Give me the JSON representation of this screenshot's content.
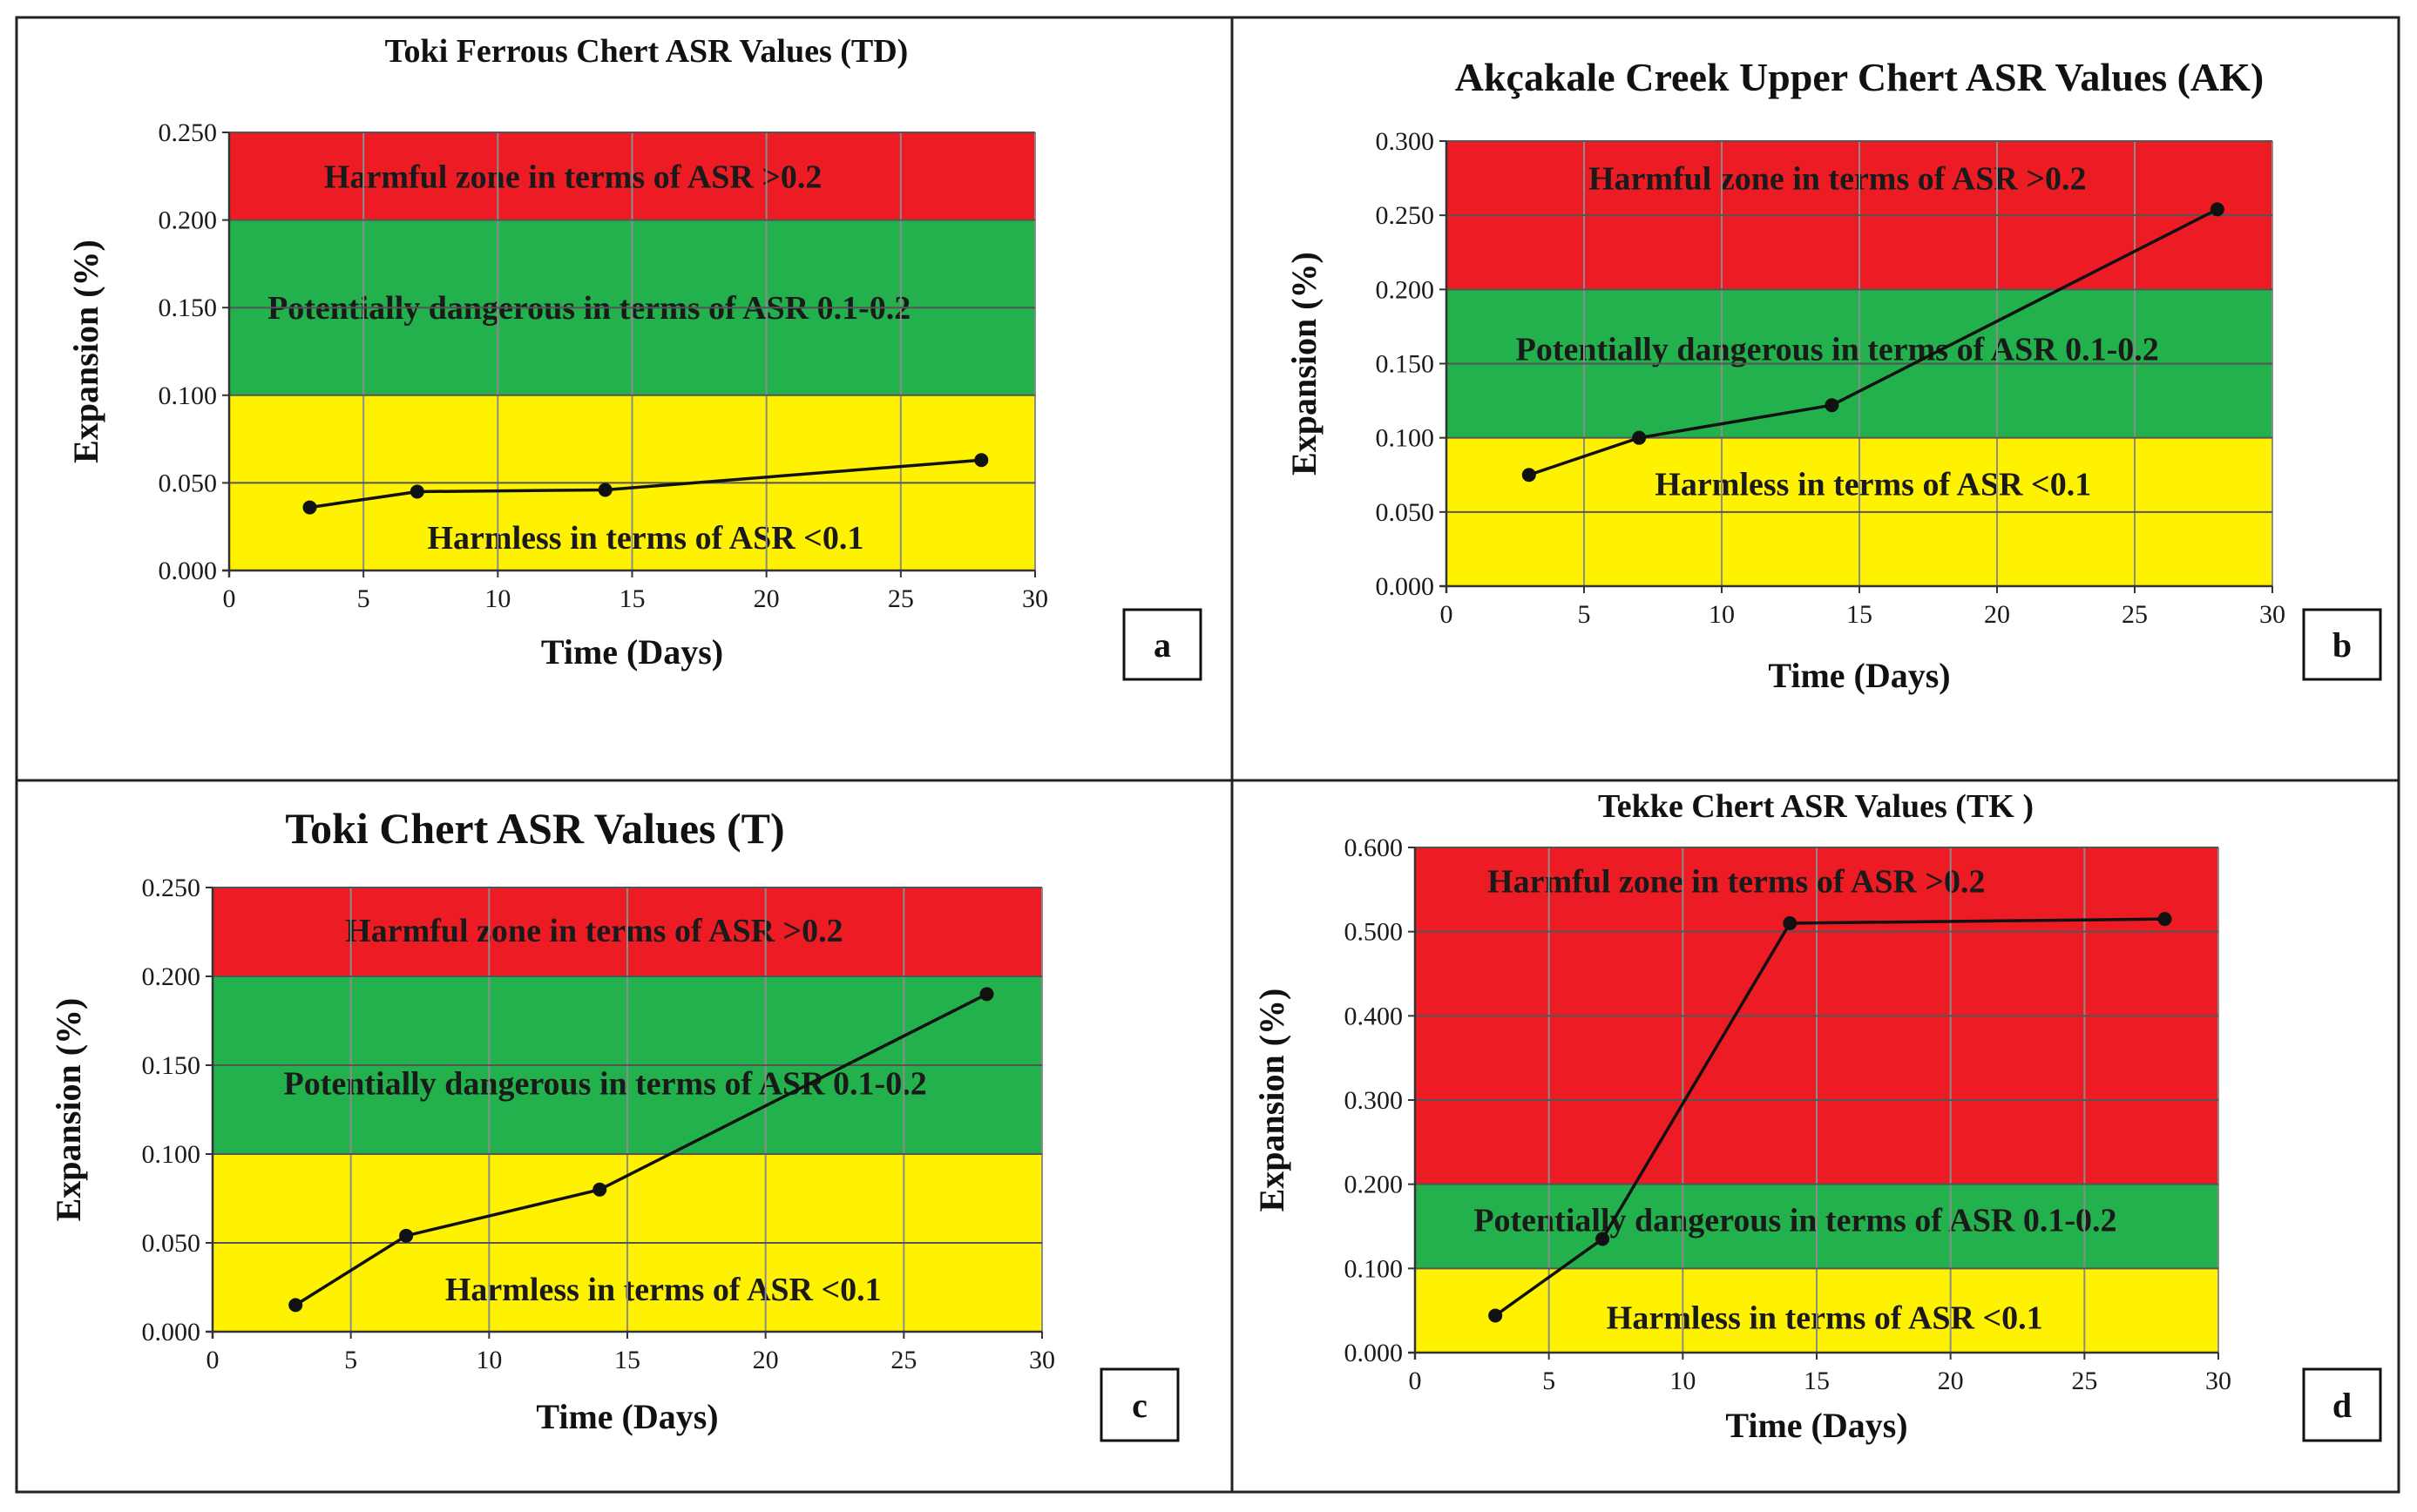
{
  "figure": {
    "zone_colors": {
      "harmful": "#ED1C24",
      "potential": "#22B14C",
      "harmless": "#FFF200"
    },
    "line_color": "#111111"
  },
  "chart_data": [
    {
      "type": "line",
      "panel_label": "a",
      "title": "Toki Ferrous Chert ASR Values (TD)",
      "xlabel": "Time (Days)",
      "ylabel": "Expansion  (%)",
      "xlim": [
        0,
        30
      ],
      "ylim": [
        0,
        0.25
      ],
      "x_ticks": [
        "0",
        "5",
        "10",
        "15",
        "20",
        "25",
        "30"
      ],
      "y_ticks": [
        "0.000",
        "0.050",
        "0.100",
        "0.150",
        "0.200",
        "0.250"
      ],
      "x_tick_values": [
        0,
        5,
        10,
        15,
        20,
        25,
        30
      ],
      "y_tick_values": [
        0,
        0.05,
        0.1,
        0.15,
        0.2,
        0.25
      ],
      "zones": [
        {
          "name": "harmless",
          "from": 0,
          "to": 0.1,
          "label": "Harmless in terms of ASR <0.1",
          "label_x": 15.5,
          "label_y": 0.019
        },
        {
          "name": "potential",
          "from": 0.1,
          "to": 0.2,
          "label": "Potentially dangerous in terms of ASR 0.1-0.2",
          "label_x": 13.4,
          "label_y": 0.15
        },
        {
          "name": "harmful",
          "from": 0.2,
          "to": 0.25,
          "label": "Harmful zone in terms of ASR >0.2",
          "label_x": 12.8,
          "label_y": 0.225
        }
      ],
      "series": [
        {
          "name": "Expansion",
          "x": [
            3,
            7,
            14,
            28
          ],
          "y": [
            0.036,
            0.045,
            0.046,
            0.063
          ]
        }
      ]
    },
    {
      "type": "line",
      "panel_label": "b",
      "title": "Akçakale Creek Upper Chert ASR Values (AK)",
      "xlabel": "Time (Days)",
      "ylabel": "Expansion  (%)",
      "xlim": [
        0,
        30
      ],
      "ylim": [
        0,
        0.3
      ],
      "x_ticks": [
        "0",
        "5",
        "10",
        "15",
        "20",
        "25",
        "30"
      ],
      "y_ticks": [
        "0.000",
        "0.050",
        "0.100",
        "0.150",
        "0.200",
        "0.250",
        "0.300"
      ],
      "x_tick_values": [
        0,
        5,
        10,
        15,
        20,
        25,
        30
      ],
      "y_tick_values": [
        0,
        0.05,
        0.1,
        0.15,
        0.2,
        0.25,
        0.3
      ],
      "zones": [
        {
          "name": "harmless",
          "from": 0,
          "to": 0.1,
          "label": "Harmless in terms of ASR <0.1",
          "label_x": 15.5,
          "label_y": 0.069
        },
        {
          "name": "potential",
          "from": 0.1,
          "to": 0.2,
          "label": "Potentially dangerous in terms of ASR 0.1-0.2",
          "label_x": 14.2,
          "label_y": 0.16
        },
        {
          "name": "harmful",
          "from": 0.2,
          "to": 0.3,
          "label": "Harmful zone in terms of ASR >0.2",
          "label_x": 14.2,
          "label_y": 0.275
        }
      ],
      "series": [
        {
          "name": "Expansion",
          "x": [
            3,
            7,
            14,
            28
          ],
          "y": [
            0.075,
            0.1,
            0.122,
            0.254
          ]
        }
      ]
    },
    {
      "type": "line",
      "panel_label": "c",
      "title": "Toki Chert ASR Values (T)",
      "xlabel": "Time (Days)",
      "ylabel": "Expansion  (%)",
      "xlim": [
        0,
        30
      ],
      "ylim": [
        0,
        0.25
      ],
      "x_ticks": [
        "0",
        "5",
        "10",
        "15",
        "20",
        "25",
        "30"
      ],
      "y_ticks": [
        "0.000",
        "0.050",
        "0.100",
        "0.150",
        "0.200",
        "0.250"
      ],
      "x_tick_values": [
        0,
        5,
        10,
        15,
        20,
        25,
        30
      ],
      "y_tick_values": [
        0,
        0.05,
        0.1,
        0.15,
        0.2,
        0.25
      ],
      "zones": [
        {
          "name": "harmless",
          "from": 0,
          "to": 0.1,
          "label": "Harmless in terms of ASR <0.1",
          "label_x": 16.3,
          "label_y": 0.024
        },
        {
          "name": "potential",
          "from": 0.1,
          "to": 0.2,
          "label": "Potentially dangerous in terms of ASR 0.1-0.2",
          "label_x": 14.2,
          "label_y": 0.14
        },
        {
          "name": "harmful",
          "from": 0.2,
          "to": 0.25,
          "label": "Harmful zone in terms of ASR >0.2",
          "label_x": 13.8,
          "label_y": 0.226
        }
      ],
      "series": [
        {
          "name": "Expansion",
          "x": [
            3,
            7,
            14,
            28
          ],
          "y": [
            0.015,
            0.054,
            0.08,
            0.19
          ]
        }
      ]
    },
    {
      "type": "line",
      "panel_label": "d",
      "title": "Tekke Chert ASR Values (TK )",
      "xlabel": "Time (Days)",
      "ylabel": "Expansion  (%)",
      "xlim": [
        0,
        30
      ],
      "ylim": [
        0,
        0.6
      ],
      "x_ticks": [
        "0",
        "5",
        "10",
        "15",
        "20",
        "25",
        "30"
      ],
      "y_ticks": [
        "0.000",
        "0.100",
        "0.200",
        "0.300",
        "0.400",
        "0.500",
        "0.600"
      ],
      "x_tick_values": [
        0,
        5,
        10,
        15,
        20,
        25,
        30
      ],
      "y_tick_values": [
        0,
        0.1,
        0.2,
        0.3,
        0.4,
        0.5,
        0.6
      ],
      "zones": [
        {
          "name": "harmless",
          "from": 0,
          "to": 0.1,
          "label": "Harmless in terms of ASR <0.1",
          "label_x": 15.3,
          "label_y": 0.042
        },
        {
          "name": "potential",
          "from": 0.1,
          "to": 0.2,
          "label": "Potentially dangerous in terms of ASR 0.1-0.2",
          "label_x": 14.2,
          "label_y": 0.158
        },
        {
          "name": "harmful",
          "from": 0.2,
          "to": 0.6,
          "label": "Harmful zone in terms of ASR >0.2",
          "label_x": 12.0,
          "label_y": 0.56
        }
      ],
      "series": [
        {
          "name": "Expansion",
          "x": [
            3,
            7,
            14,
            28
          ],
          "y": [
            0.044,
            0.135,
            0.51,
            0.515
          ]
        }
      ]
    }
  ]
}
